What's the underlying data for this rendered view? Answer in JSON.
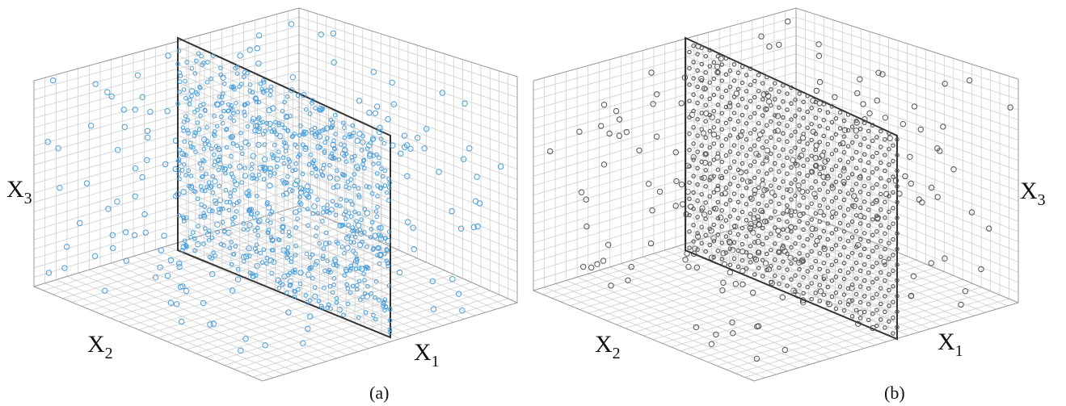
{
  "chart_data": [
    {
      "type": "scatter",
      "panel": "a",
      "caption": "(a)",
      "axis_labels": {
        "x1": "X1",
        "x2": "X2",
        "x3": "X3"
      },
      "point_color": "#4a9fdc",
      "x1_range": [
        0,
        1
      ],
      "x2_range": [
        0,
        1
      ],
      "x3_range": [
        0,
        1
      ],
      "grid": true,
      "highlighted_plane": "x1 = 0.5",
      "plane_points_estimated": 700,
      "off_plane_points_estimated": 250,
      "plane_pattern": "random"
    },
    {
      "type": "scatter",
      "panel": "b",
      "caption": "(b)",
      "axis_labels": {
        "x1": "X1",
        "x2": "X2",
        "x3": "X3"
      },
      "point_color": "#555555",
      "x1_range": [
        0,
        1
      ],
      "x2_range": [
        0,
        1
      ],
      "x3_range": [
        0,
        1
      ],
      "grid": true,
      "highlighted_plane": "x1 = 0.5",
      "plane_points_estimated": 700,
      "off_plane_points_estimated": 250,
      "plane_pattern": "lattice"
    }
  ],
  "labels": {
    "a": {
      "x1": "X",
      "x1_sub": "1",
      "x2": "X",
      "x2_sub": "2",
      "x3": "X",
      "x3_sub": "3",
      "caption": "(a)"
    },
    "b": {
      "x1": "X",
      "x1_sub": "1",
      "x2": "X",
      "x2_sub": "2",
      "x3": "X",
      "x3_sub": "3",
      "caption": "(b)"
    }
  }
}
